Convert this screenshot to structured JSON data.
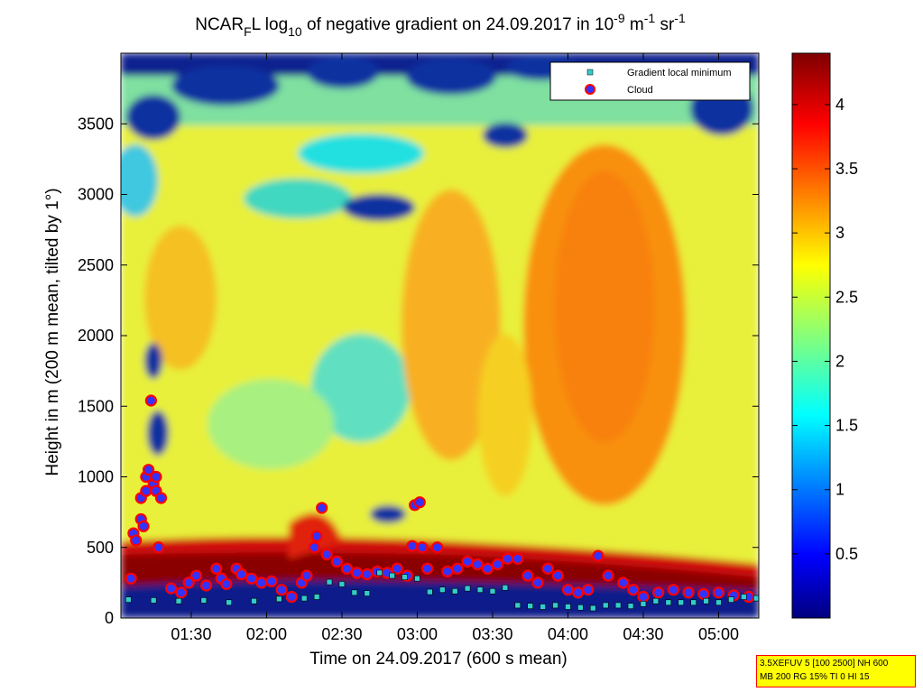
{
  "chart_data": {
    "type": "heatmap",
    "title": {
      "prefix": "NCAR",
      "sub1": "F",
      "mid1": "L log",
      "sub2": "10",
      "mid2": " of negative gradient on 24.09.2017 in 10",
      "sup1": "-9",
      "mid3": " m",
      "sup2": "-1",
      "mid4": " sr",
      "sup3": "-1"
    },
    "xlabel": "Time on 24.09.2017 (600 s mean)",
    "ylabel": "Height in m (200 m mean, tilted by 1°)",
    "x_ticks": [
      "01:30",
      "02:00",
      "02:30",
      "03:00",
      "03:30",
      "04:00",
      "04:30",
      "05:00"
    ],
    "x_tick_minutes": [
      90,
      120,
      150,
      180,
      210,
      240,
      270,
      300
    ],
    "xlim_minutes": [
      62,
      316
    ],
    "y_ticks": [
      0,
      500,
      1000,
      1500,
      2000,
      2500,
      3000,
      3500
    ],
    "ylim": [
      0,
      4000
    ],
    "colorbar": {
      "ticks": [
        "0.5",
        "1",
        "1.5",
        "2",
        "2.5",
        "3",
        "3.5",
        "4"
      ],
      "tick_values": [
        0.5,
        1,
        1.5,
        2,
        2.5,
        3,
        3.5,
        4
      ],
      "range": [
        0,
        4.4
      ],
      "colormap": "jet"
    },
    "legend": {
      "position": "top-right",
      "entries": [
        {
          "name": "Gradient local minimum",
          "marker": "square",
          "color": "#33cccc"
        },
        {
          "name": "Cloud",
          "marker": "circle",
          "color": "#ff0000"
        }
      ]
    },
    "series": [
      {
        "name": "Gradient local minimum",
        "x_minutes": [
          65,
          75,
          85,
          95,
          105,
          115,
          125,
          135,
          140,
          145,
          150,
          155,
          160,
          165,
          170,
          175,
          180,
          185,
          190,
          195,
          200,
          205,
          210,
          215,
          220,
          225,
          230,
          235,
          240,
          245,
          250,
          255,
          260,
          265,
          270,
          275,
          280,
          285,
          290,
          295,
          300,
          305,
          310,
          315
        ],
        "y": [
          130,
          125,
          120,
          125,
          110,
          120,
          135,
          140,
          150,
          255,
          240,
          180,
          175,
          320,
          300,
          290,
          280,
          185,
          200,
          190,
          210,
          200,
          190,
          215,
          90,
          85,
          80,
          90,
          80,
          75,
          70,
          90,
          90,
          85,
          100,
          120,
          110,
          110,
          110,
          120,
          110,
          130,
          150,
          140
        ]
      },
      {
        "name": "Cloud",
        "x_minutes": [
          66,
          67,
          68,
          70,
          70,
          71,
          72,
          72,
          73,
          74,
          75,
          76,
          76,
          77,
          78,
          82,
          86,
          89,
          92,
          96,
          100,
          102,
          104,
          108,
          110,
          114,
          118,
          122,
          126,
          130,
          134,
          136,
          139,
          140,
          142,
          144,
          148,
          152,
          156,
          160,
          164,
          168,
          172,
          176,
          178,
          179,
          181,
          182,
          184,
          188,
          192,
          196,
          200,
          204,
          208,
          212,
          216,
          220,
          224,
          228,
          232,
          236,
          240,
          244,
          248,
          252,
          256,
          262,
          266,
          270,
          276,
          282,
          288,
          294,
          300,
          306,
          312
        ],
        "y": [
          280,
          600,
          550,
          700,
          850,
          650,
          900,
          1000,
          1050,
          1540,
          950,
          900,
          1000,
          500,
          850,
          210,
          180,
          250,
          300,
          230,
          350,
          280,
          240,
          350,
          310,
          280,
          250,
          260,
          200,
          150,
          250,
          300,
          500,
          580,
          780,
          450,
          400,
          350,
          320,
          310,
          330,
          320,
          350,
          300,
          510,
          800,
          820,
          500,
          350,
          500,
          330,
          350,
          400,
          380,
          350,
          380,
          420,
          420,
          300,
          250,
          350,
          300,
          200,
          180,
          200,
          440,
          300,
          250,
          200,
          150,
          180,
          200,
          180,
          170,
          180,
          160,
          150
        ]
      }
    ],
    "info_box": [
      "3.5XEFUV 5 [100 2500] NH 600",
      "MB 200 RG 15% TI 0 HI 15"
    ]
  }
}
